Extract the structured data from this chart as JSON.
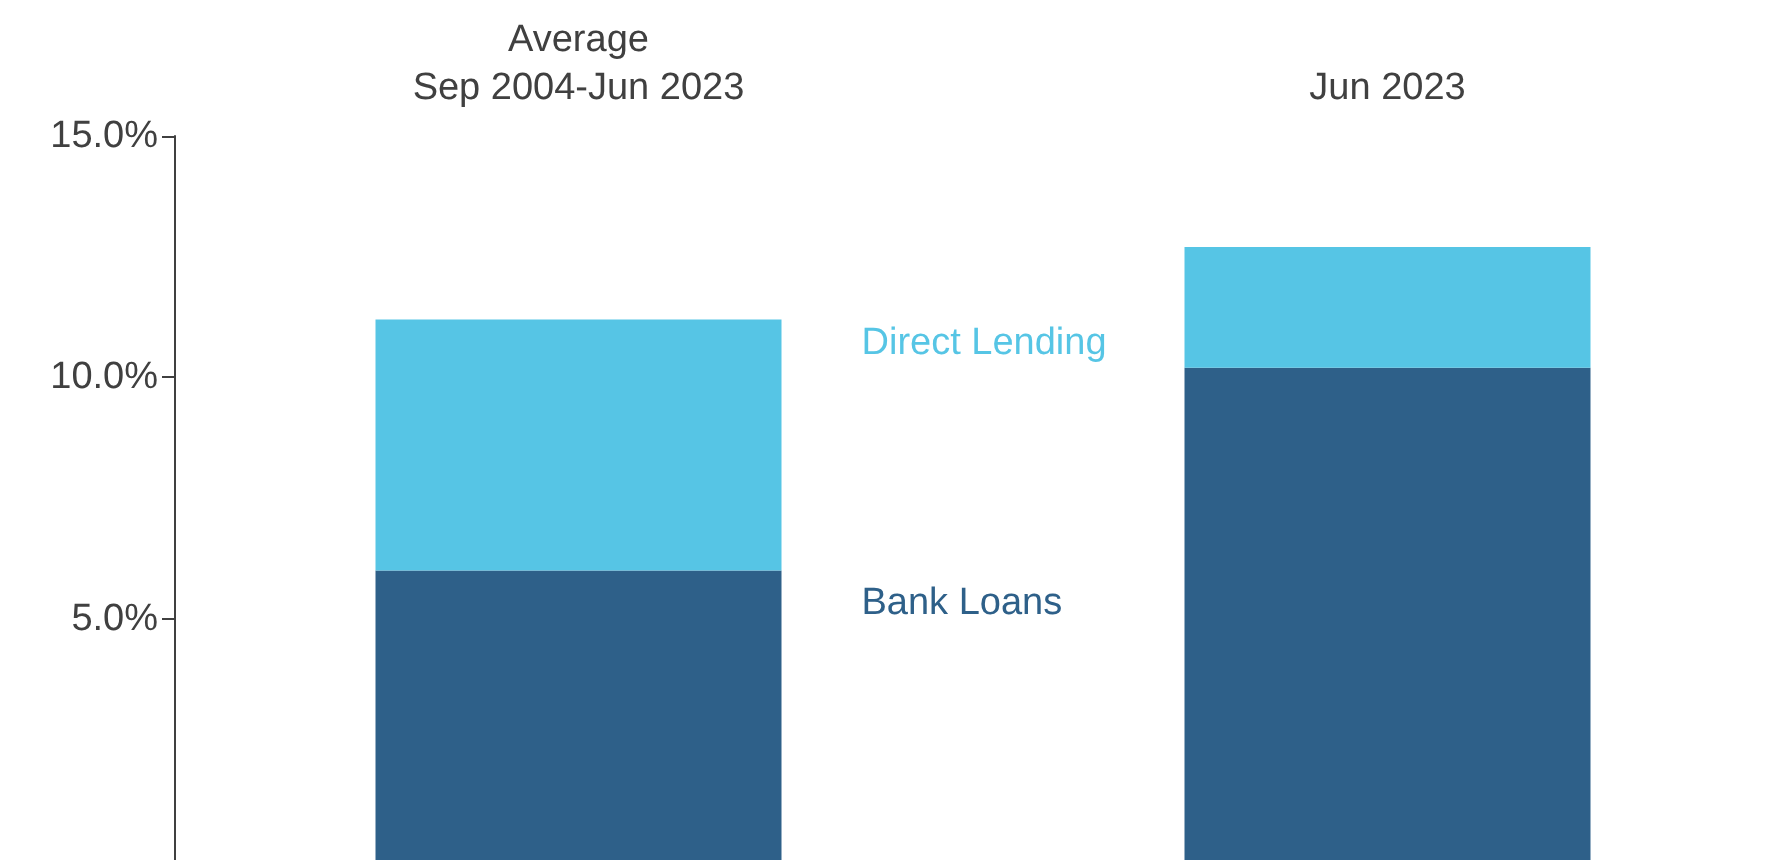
{
  "chart_data": {
    "type": "bar",
    "stacked": true,
    "categories": [
      "Average\nSep 2004-Jun 2023",
      "Jun 2023"
    ],
    "series": [
      {
        "name": "Bank Loans",
        "color": "#2e6089",
        "values": [
          6.0,
          10.2
        ]
      },
      {
        "name": "Direct Lending",
        "color": "#56c5e5",
        "values": [
          5.2,
          2.5
        ]
      }
    ],
    "ylim": [
      0,
      15
    ],
    "yticks": [
      {
        "value": 5,
        "label": "5.0%"
      },
      {
        "value": 10,
        "label": "10.0%"
      },
      {
        "value": 15,
        "label": "15.0%"
      }
    ],
    "grid": false,
    "legend": false
  }
}
